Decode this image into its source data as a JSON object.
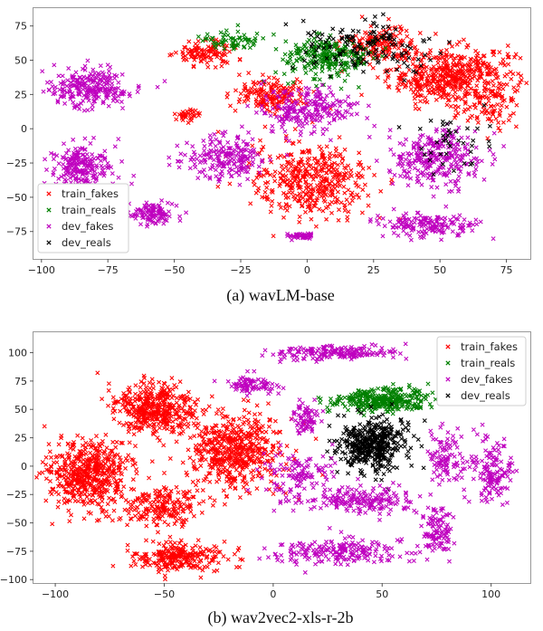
{
  "colors": {
    "train_fakes": "#ff0000",
    "train_reals": "#008000",
    "dev_fakes": "#bf00bf",
    "dev_reals": "#000000"
  },
  "chart_data": [
    {
      "type": "scatter",
      "caption": "(a) wavLM-base",
      "marker": "x",
      "xlim": [
        -103,
        84
      ],
      "ylim": [
        -95,
        88
      ],
      "xticks": [
        -100,
        -75,
        -50,
        -25,
        0,
        25,
        50,
        75
      ],
      "yticks": [
        -75,
        -50,
        -25,
        0,
        25,
        50,
        75
      ],
      "grid": false,
      "legend_position": "lower-left",
      "series": [
        {
          "name": "train_fakes",
          "color": "#ff0000"
        },
        {
          "name": "train_reals",
          "color": "#008000"
        },
        {
          "name": "dev_fakes",
          "color": "#bf00bf"
        },
        {
          "name": "dev_reals",
          "color": "#000000"
        }
      ],
      "clusters": [
        {
          "series": 0,
          "n": 520,
          "cx": 55,
          "cy": 38,
          "sx": 16,
          "sy": 14
        },
        {
          "series": 0,
          "n": 420,
          "cx": 2,
          "cy": -38,
          "sx": 15,
          "sy": 18
        },
        {
          "series": 0,
          "n": 160,
          "cx": -14,
          "cy": 25,
          "sx": 9,
          "sy": 8
        },
        {
          "series": 0,
          "n": 110,
          "cx": -38,
          "cy": 55,
          "sx": 8,
          "sy": 6
        },
        {
          "series": 0,
          "n": 160,
          "cx": 28,
          "cy": 62,
          "sx": 9,
          "sy": 8
        },
        {
          "series": 0,
          "n": 35,
          "cx": -45,
          "cy": 10,
          "sx": 3,
          "sy": 3
        },
        {
          "series": 0,
          "n": 60,
          "cx": 70,
          "cy": 15,
          "sx": 7,
          "sy": 9
        },
        {
          "series": 1,
          "n": 260,
          "cx": 8,
          "cy": 52,
          "sx": 11,
          "sy": 10
        },
        {
          "series": 1,
          "n": 60,
          "cx": -28,
          "cy": 65,
          "sx": 8,
          "sy": 5
        },
        {
          "series": 2,
          "n": 240,
          "cx": -82,
          "cy": 30,
          "sx": 10,
          "sy": 9
        },
        {
          "series": 2,
          "n": 220,
          "cx": -85,
          "cy": -28,
          "sx": 8,
          "sy": 12
        },
        {
          "series": 2,
          "n": 200,
          "cx": -30,
          "cy": -22,
          "sx": 11,
          "sy": 11
        },
        {
          "series": 2,
          "n": 280,
          "cx": 48,
          "cy": -22,
          "sx": 12,
          "sy": 14
        },
        {
          "series": 2,
          "n": 220,
          "cx": 0,
          "cy": 15,
          "sx": 13,
          "sy": 9
        },
        {
          "series": 2,
          "n": 160,
          "cx": 45,
          "cy": -70,
          "sx": 12,
          "sy": 6
        },
        {
          "series": 2,
          "n": 110,
          "cx": -58,
          "cy": -62,
          "sx": 6,
          "sy": 5
        },
        {
          "series": 2,
          "n": 40,
          "cx": -2,
          "cy": -78,
          "sx": 4,
          "sy": 2
        },
        {
          "series": 3,
          "n": 140,
          "cx": 22,
          "cy": 60,
          "sx": 18,
          "sy": 12
        },
        {
          "series": 3,
          "n": 40,
          "cx": 55,
          "cy": -10,
          "sx": 8,
          "sy": 14
        }
      ]
    },
    {
      "type": "scatter",
      "caption": "(b) wav2vec2-xls-r-2b",
      "marker": "x",
      "xlim": [
        -110,
        118
      ],
      "ylim": [
        -103,
        118
      ],
      "xticks": [
        -100,
        -50,
        0,
        50,
        100
      ],
      "yticks": [
        -100,
        -75,
        -50,
        -25,
        0,
        25,
        50,
        75,
        100
      ],
      "grid": false,
      "legend_position": "upper-right",
      "series": [
        {
          "name": "train_fakes",
          "color": "#ff0000"
        },
        {
          "name": "train_reals",
          "color": "#008000"
        },
        {
          "name": "dev_fakes",
          "color": "#bf00bf"
        },
        {
          "name": "dev_reals",
          "color": "#000000"
        }
      ],
      "clusters": [
        {
          "series": 0,
          "n": 520,
          "cx": -85,
          "cy": -8,
          "sx": 12,
          "sy": 20
        },
        {
          "series": 0,
          "n": 420,
          "cx": -55,
          "cy": 50,
          "sx": 13,
          "sy": 15
        },
        {
          "series": 0,
          "n": 520,
          "cx": -18,
          "cy": 15,
          "sx": 15,
          "sy": 22
        },
        {
          "series": 0,
          "n": 260,
          "cx": -42,
          "cy": -80,
          "sx": 13,
          "sy": 9
        },
        {
          "series": 0,
          "n": 200,
          "cx": -50,
          "cy": -35,
          "sx": 14,
          "sy": 12
        },
        {
          "series": 1,
          "n": 320,
          "cx": 50,
          "cy": 58,
          "sx": 15,
          "sy": 7
        },
        {
          "series": 3,
          "n": 440,
          "cx": 45,
          "cy": 20,
          "sx": 10,
          "sy": 15
        },
        {
          "series": 2,
          "n": 180,
          "cx": 28,
          "cy": 100,
          "sx": 18,
          "sy": 4
        },
        {
          "series": 2,
          "n": 120,
          "cx": 12,
          "cy": -10,
          "sx": 10,
          "sy": 14
        },
        {
          "series": 2,
          "n": 200,
          "cx": 30,
          "cy": -75,
          "sx": 20,
          "sy": 8
        },
        {
          "series": 2,
          "n": 180,
          "cx": 40,
          "cy": -30,
          "sx": 16,
          "sy": 8
        },
        {
          "series": 2,
          "n": 140,
          "cx": 100,
          "cy": -5,
          "sx": 6,
          "sy": 18
        },
        {
          "series": 2,
          "n": 100,
          "cx": 75,
          "cy": -55,
          "sx": 5,
          "sy": 14
        },
        {
          "series": 2,
          "n": 100,
          "cx": 80,
          "cy": 5,
          "sx": 6,
          "sy": 16
        },
        {
          "series": 2,
          "n": 80,
          "cx": -10,
          "cy": 72,
          "sx": 7,
          "sy": 6
        },
        {
          "series": 2,
          "n": 70,
          "cx": 15,
          "cy": 42,
          "sx": 4,
          "sy": 10
        }
      ]
    }
  ]
}
